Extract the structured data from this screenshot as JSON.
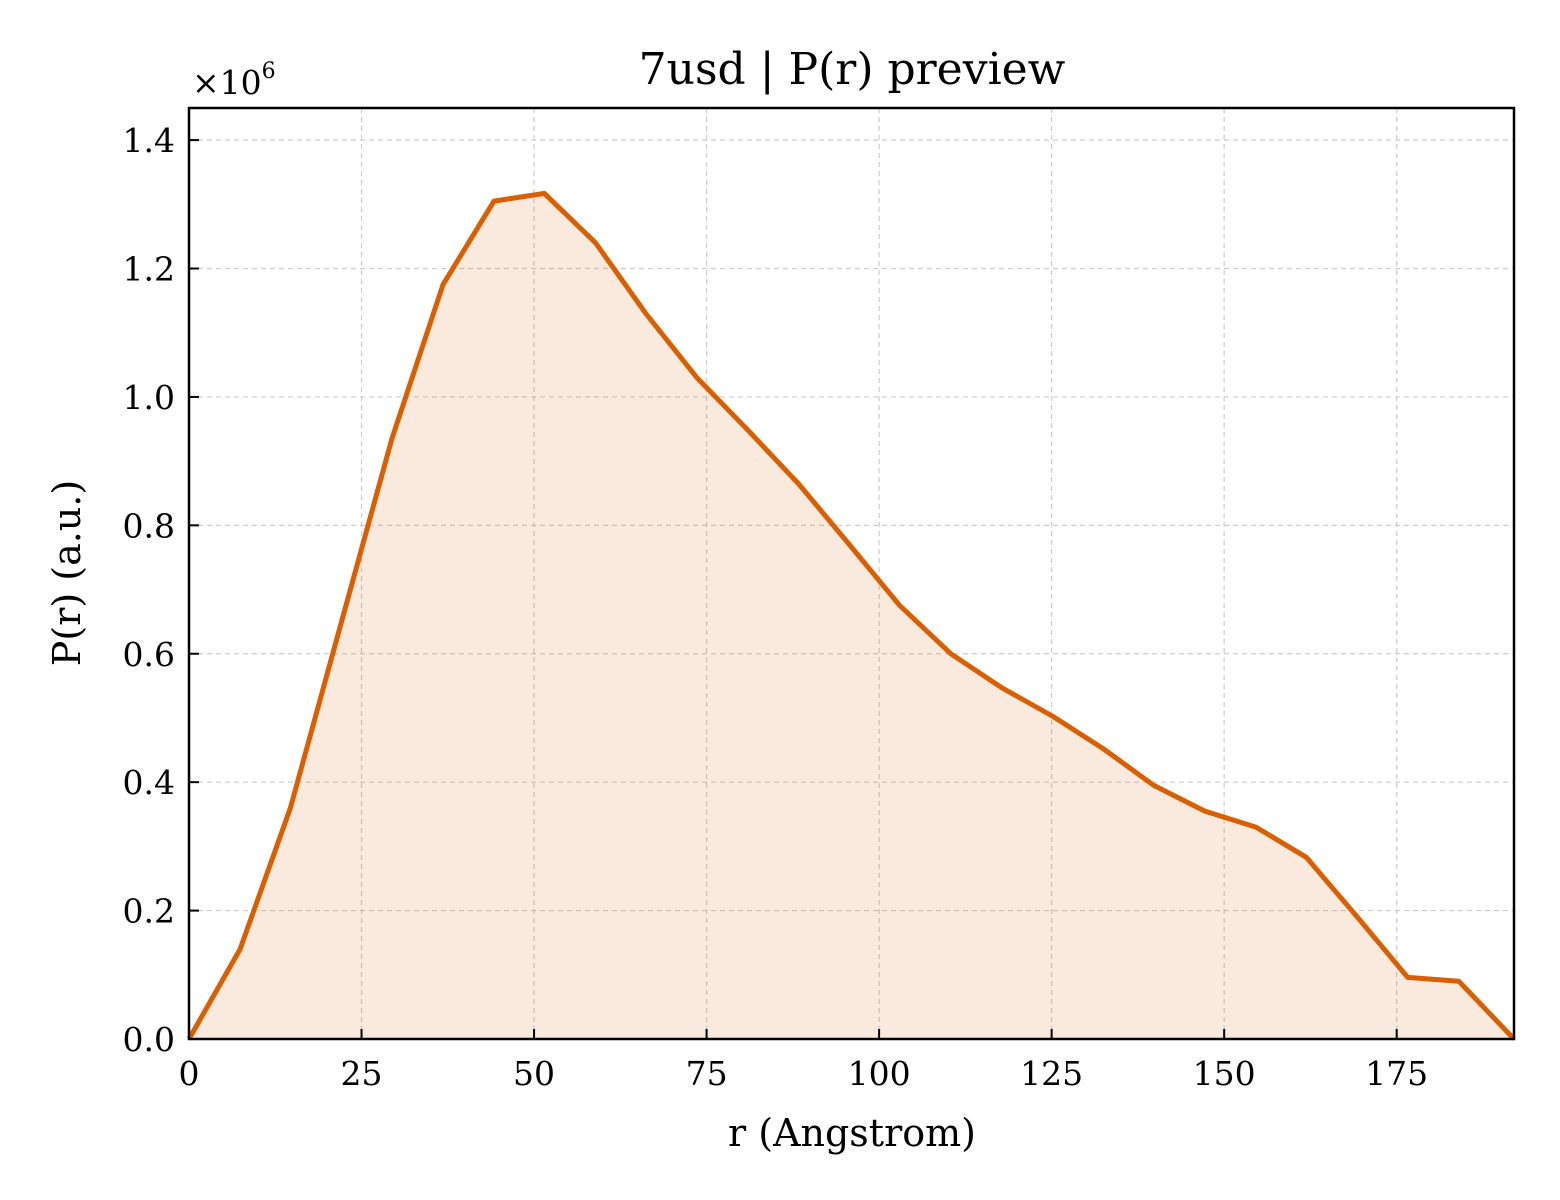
{
  "chart_data": {
    "type": "area",
    "title": "7usd | P(r) preview",
    "xlabel": "r (Angstrom)",
    "ylabel": "P(r) (a.u.)",
    "y_multiplier": "×10",
    "y_multiplier_exp": "6",
    "xlim": [
      0,
      192
    ],
    "ylim": [
      0,
      1.45
    ],
    "xticks": [
      0,
      25,
      50,
      75,
      100,
      125,
      150,
      175
    ],
    "xtick_labels": [
      "0",
      "25",
      "50",
      "75",
      "100",
      "125",
      "150",
      "175"
    ],
    "yticks": [
      0,
      0.2,
      0.4,
      0.6,
      0.8,
      1.0,
      1.2,
      1.4
    ],
    "ytick_labels": [
      "0.0",
      "0.2",
      "0.4",
      "0.6",
      "0.8",
      "1.0",
      "1.2",
      "1.4"
    ],
    "grid": true,
    "series": [
      {
        "color": "#d95f02",
        "fill_color": "#d95f02",
        "x": [
          0,
          7.4,
          14.7,
          22.1,
          29.4,
          36.8,
          44.2,
          51.5,
          58.9,
          66.2,
          73.6,
          81.0,
          88.3,
          95.7,
          103.0,
          110.4,
          117.8,
          125.1,
          132.5,
          139.8,
          147.2,
          154.6,
          161.9,
          169.3,
          176.6,
          184.0,
          192.0
        ],
        "y": [
          0.0,
          0.14,
          0.36,
          0.65,
          0.935,
          1.175,
          1.305,
          1.317,
          1.24,
          1.13,
          1.03,
          0.948,
          0.865,
          0.77,
          0.675,
          0.6,
          0.547,
          0.503,
          0.452,
          0.395,
          0.355,
          0.33,
          0.283,
          0.19,
          0.096,
          0.09,
          0.0
        ]
      }
    ]
  }
}
